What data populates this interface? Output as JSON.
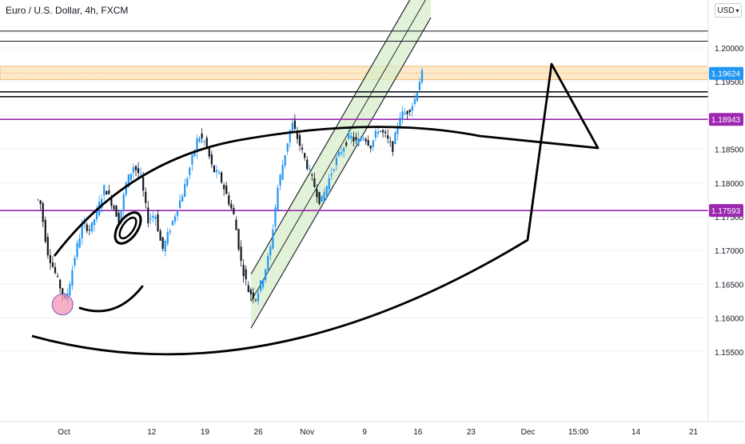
{
  "header": {
    "title": "Euro / U.S. Dollar, 4h, FXCM",
    "currency_button": "USD",
    "currency_caret": "▾"
  },
  "colors": {
    "up": "#2196f3",
    "down": "#131722",
    "support_line": "#9c27b0",
    "resistance_zone": "#fde9c8",
    "channel_fill": "#d4edc8",
    "price_tag": "#2196f3",
    "purple_tag": "#9c27b0",
    "marker_circle": "#f48fb1"
  },
  "chart_data": {
    "type": "candlestick",
    "symbol": "Euro / U.S. Dollar",
    "timeframe": "4h",
    "source": "FXCM",
    "ylim": [
      1.1505,
      1.2095
    ],
    "y_ticks": [
      "1.20000",
      "1.19500",
      "1.19000",
      "1.18500",
      "1.18000",
      "1.17500",
      "1.17000",
      "1.16500",
      "1.16000",
      "1.15500"
    ],
    "x_ticks": [
      "Oct",
      "12",
      "19",
      "26",
      "Nov",
      "9",
      "16",
      "23",
      "Dec",
      "15:00",
      "14",
      "21"
    ],
    "price_series": [
      {
        "day": -4,
        "price": 1.1775
      },
      {
        "day": -3,
        "price": 1.17
      },
      {
        "day": -2,
        "price": 1.167
      },
      {
        "day": -1,
        "price": 1.164
      },
      {
        "day": -0.5,
        "price": 1.1625
      },
      {
        "day": 0,
        "price": 1.1645
      },
      {
        "day": 1,
        "price": 1.17
      },
      {
        "day": 2,
        "price": 1.174
      },
      {
        "day": 3,
        "price": 1.173
      },
      {
        "day": 4,
        "price": 1.176
      },
      {
        "day": 5,
        "price": 1.1795
      },
      {
        "day": 6,
        "price": 1.177
      },
      {
        "day": 7,
        "price": 1.1745
      },
      {
        "day": 8,
        "price": 1.18
      },
      {
        "day": 9,
        "price": 1.1825
      },
      {
        "day": 10,
        "price": 1.181
      },
      {
        "day": 11,
        "price": 1.1745
      },
      {
        "day": 12,
        "price": 1.1755
      },
      {
        "day": 13,
        "price": 1.17
      },
      {
        "day": 14,
        "price": 1.173
      },
      {
        "day": 15,
        "price": 1.176
      },
      {
        "day": 16,
        "price": 1.179
      },
      {
        "day": 17,
        "price": 1.183
      },
      {
        "day": 18,
        "price": 1.187
      },
      {
        "day": 19,
        "price": 1.186
      },
      {
        "day": 20,
        "price": 1.182
      },
      {
        "day": 21,
        "price": 1.181
      },
      {
        "day": 22,
        "price": 1.178
      },
      {
        "day": 23,
        "price": 1.175
      },
      {
        "day": 24,
        "price": 1.168
      },
      {
        "day": 25,
        "price": 1.164
      },
      {
        "day": 26,
        "price": 1.163
      },
      {
        "day": 27,
        "price": 1.166
      },
      {
        "day": 28,
        "price": 1.17
      },
      {
        "day": 29,
        "price": 1.179
      },
      {
        "day": 30,
        "price": 1.184
      },
      {
        "day": 31,
        "price": 1.189
      },
      {
        "day": 32,
        "price": 1.186
      },
      {
        "day": 33,
        "price": 1.183
      },
      {
        "day": 34,
        "price": 1.18
      },
      {
        "day": 35,
        "price": 1.177
      },
      {
        "day": 36,
        "price": 1.18
      },
      {
        "day": 37,
        "price": 1.183
      },
      {
        "day": 38,
        "price": 1.185
      },
      {
        "day": 39,
        "price": 1.187
      },
      {
        "day": 40,
        "price": 1.186
      },
      {
        "day": 41,
        "price": 1.187
      },
      {
        "day": 42,
        "price": 1.1855
      },
      {
        "day": 43,
        "price": 1.188
      },
      {
        "day": 44,
        "price": 1.187
      },
      {
        "day": 45,
        "price": 1.185
      },
      {
        "day": 46,
        "price": 1.19
      },
      {
        "day": 47,
        "price": 1.1905
      },
      {
        "day": 48,
        "price": 1.192
      },
      {
        "day": 49,
        "price": 1.1962
      }
    ],
    "horizontal_levels": [
      {
        "price": 1.2025,
        "style": "thin"
      },
      {
        "price": 1.201,
        "style": "thin"
      },
      {
        "price": 1.1935,
        "style": "thick"
      },
      {
        "price": 1.1928,
        "style": "thick"
      }
    ],
    "support_lines": [
      {
        "price": 1.18943,
        "label": "1.18943"
      },
      {
        "price": 1.17593,
        "label": "1.17593"
      }
    ],
    "resistance_zone": [
      1.1953,
      1.1973
    ],
    "last_price": {
      "price": 1.19624,
      "label": "1.19624"
    },
    "channel": {
      "start": {
        "day": 25.0,
        "price": 1.1625
      },
      "end": {
        "day": 50.0,
        "price": 1.2085
      },
      "width": 0.004
    },
    "marker_circle": {
      "day": -1.2,
      "price": 1.162
    },
    "grid": true,
    "legend": "none"
  }
}
